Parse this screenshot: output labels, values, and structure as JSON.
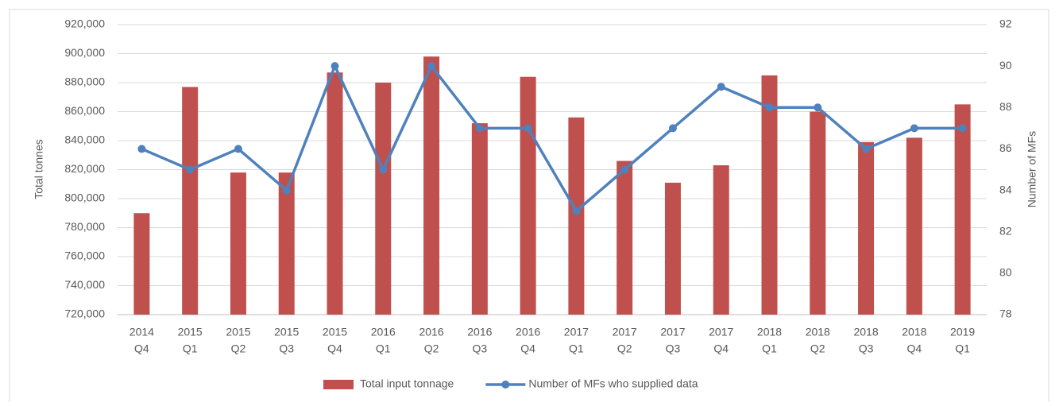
{
  "chart_data": {
    "type": "bar-line",
    "categories": [
      [
        "2014",
        "Q4"
      ],
      [
        "2015",
        "Q1"
      ],
      [
        "2015",
        "Q2"
      ],
      [
        "2015",
        "Q3"
      ],
      [
        "2015",
        "Q4"
      ],
      [
        "2016",
        "Q1"
      ],
      [
        "2016",
        "Q2"
      ],
      [
        "2016",
        "Q3"
      ],
      [
        "2016",
        "Q4"
      ],
      [
        "2017",
        "Q1"
      ],
      [
        "2017",
        "Q2"
      ],
      [
        "2017",
        "Q3"
      ],
      [
        "2017",
        "Q4"
      ],
      [
        "2018",
        "Q1"
      ],
      [
        "2018",
        "Q2"
      ],
      [
        "2018",
        "Q3"
      ],
      [
        "2018",
        "Q4"
      ],
      [
        "2019",
        "Q1"
      ]
    ],
    "y_label": "Total tonnes",
    "y2_label": "Number of MFs",
    "ylim": [
      720000,
      920000
    ],
    "yticks": [
      {
        "value": 720000,
        "label": "720,000"
      },
      {
        "value": 740000,
        "label": "740,000"
      },
      {
        "value": 760000,
        "label": "760,000"
      },
      {
        "value": 780000,
        "label": "780,000"
      },
      {
        "value": 800000,
        "label": "800,000"
      },
      {
        "value": 820000,
        "label": "820,000"
      },
      {
        "value": 840000,
        "label": "840,000"
      },
      {
        "value": 860000,
        "label": "860,000"
      },
      {
        "value": 880000,
        "label": "880,000"
      },
      {
        "value": 900000,
        "label": "900,000"
      },
      {
        "value": 920000,
        "label": "920,000"
      }
    ],
    "y2lim": [
      78,
      92
    ],
    "y2ticks": [
      78,
      80,
      82,
      84,
      86,
      88,
      90,
      92
    ],
    "grid": true,
    "series": [
      {
        "name": "Total input tonnage",
        "type": "bar",
        "color": "#c0504d",
        "values": [
          790000,
          877000,
          818000,
          818000,
          887000,
          880000,
          898000,
          852000,
          884000,
          856000,
          826000,
          811000,
          823000,
          885000,
          860000,
          839000,
          842000,
          865000
        ]
      },
      {
        "name": "Number of MFs who supplied data",
        "type": "line",
        "axis": "y2",
        "color": "#4f81bd",
        "values": [
          86,
          85,
          86,
          84,
          90,
          85,
          90,
          87,
          87,
          83,
          85,
          87,
          89,
          88,
          88,
          86,
          87,
          87
        ]
      }
    ]
  }
}
